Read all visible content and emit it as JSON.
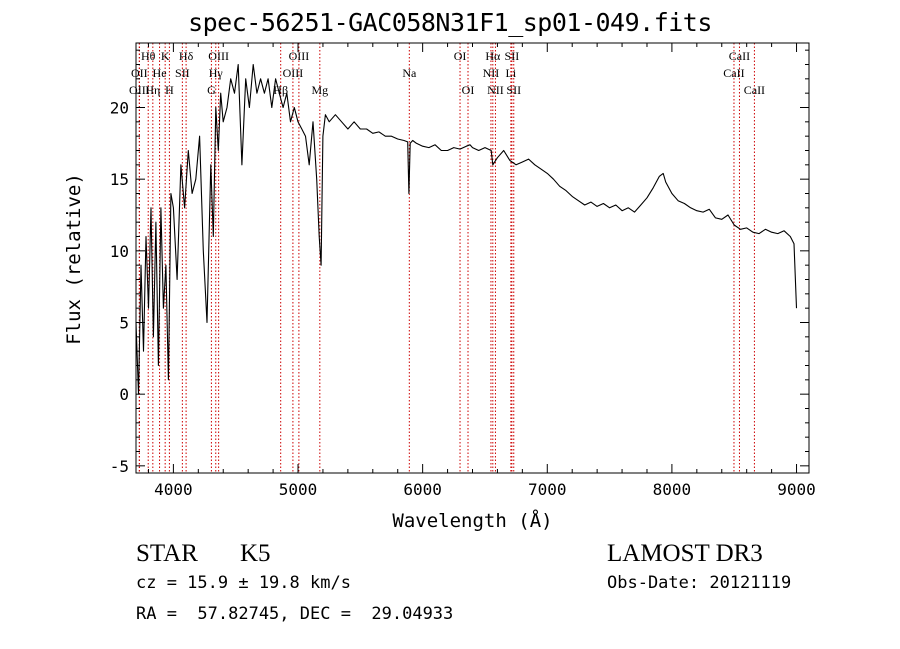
{
  "chart_data": {
    "type": "line",
    "title": "spec-56251-GAC058N31F1_sp01-049.fits",
    "xlabel": "Wavelength (Å)",
    "ylabel": "Flux (relative)",
    "xlim": [
      3700,
      9100
    ],
    "ylim": [
      -5.5,
      24.5
    ],
    "x_ticks": [
      4000,
      5000,
      6000,
      7000,
      8000,
      9000
    ],
    "y_ticks": [
      -5,
      0,
      5,
      10,
      15,
      20
    ],
    "series": [
      {
        "x": [
          3700,
          3720,
          3740,
          3760,
          3780,
          3800,
          3820,
          3840,
          3860,
          3880,
          3900,
          3920,
          3940,
          3960,
          3980,
          4000,
          4030,
          4060,
          4090,
          4120,
          4150,
          4180,
          4210,
          4240,
          4270,
          4300,
          4320,
          4340,
          4360,
          4380,
          4400,
          4430,
          4460,
          4490,
          4520,
          4550,
          4580,
          4610,
          4640,
          4670,
          4700,
          4730,
          4760,
          4790,
          4820,
          4850,
          4880,
          4910,
          4940,
          4970,
          5000,
          5030,
          5060,
          5090,
          5120,
          5150,
          5170,
          5185,
          5200,
          5220,
          5250,
          5300,
          5350,
          5400,
          5450,
          5500,
          5550,
          5600,
          5650,
          5700,
          5750,
          5800,
          5850,
          5880,
          5890,
          5900,
          5920,
          5950,
          6000,
          6050,
          6100,
          6150,
          6200,
          6250,
          6300,
          6350,
          6380,
          6400,
          6450,
          6500,
          6550,
          6563,
          6600,
          6650,
          6700,
          6750,
          6800,
          6850,
          6900,
          6950,
          7000,
          7050,
          7100,
          7150,
          7200,
          7250,
          7300,
          7350,
          7400,
          7450,
          7500,
          7550,
          7600,
          7650,
          7700,
          7750,
          7800,
          7850,
          7900,
          7930,
          7950,
          8000,
          8050,
          8100,
          8150,
          8200,
          8250,
          8300,
          8350,
          8400,
          8450,
          8500,
          8550,
          8600,
          8650,
          8700,
          8750,
          8800,
          8850,
          8900,
          8950,
          8980,
          9000
        ],
        "y": [
          5,
          0,
          9,
          3,
          11,
          6,
          13,
          4,
          12,
          2,
          13,
          6,
          9,
          1,
          14,
          13,
          8,
          16,
          13,
          17,
          14,
          15,
          18,
          10,
          5,
          16,
          11,
          20,
          17,
          21,
          19,
          20,
          22,
          21,
          23,
          16,
          22,
          20,
          23,
          21,
          22,
          21,
          22,
          20,
          22,
          21,
          20,
          21,
          19,
          20,
          19,
          18.5,
          18,
          16,
          19,
          15,
          11,
          9,
          18,
          19.5,
          19,
          19.5,
          19,
          18.5,
          19,
          18.5,
          18.5,
          18.2,
          18.3,
          18,
          18,
          17.8,
          17.7,
          17.6,
          14,
          17.5,
          17.7,
          17.5,
          17.3,
          17.2,
          17.4,
          17,
          17,
          17.2,
          17.1,
          17.3,
          17.4,
          17.2,
          17,
          17.2,
          17,
          16,
          16.5,
          17,
          16.3,
          16,
          16.2,
          16.4,
          16,
          15.7,
          15.4,
          15,
          14.5,
          14.2,
          13.8,
          13.5,
          13.2,
          13.4,
          13.1,
          13.3,
          13,
          13.2,
          12.8,
          13,
          12.7,
          13.2,
          13.7,
          14.4,
          15.2,
          15.4,
          14.8,
          14,
          13.5,
          13.3,
          13,
          12.8,
          12.7,
          12.9,
          12.3,
          12.2,
          12.5,
          11.8,
          11.5,
          11.6,
          11.3,
          11.2,
          11.5,
          11.3,
          11.2,
          11.4,
          11,
          10.5,
          6
        ]
      }
    ],
    "lines": [
      {
        "label": "Hθ",
        "x": 3798,
        "row": 0
      },
      {
        "label": "OII",
        "x": 3727,
        "row": 1
      },
      {
        "label": "OIII",
        "x": 3727,
        "row": 2
      },
      {
        "label": "Hη",
        "x": 3835,
        "row": 2
      },
      {
        "label": "K",
        "x": 3934,
        "row": 0
      },
      {
        "label": "He",
        "x": 3889,
        "row": 1
      },
      {
        "label": "H",
        "x": 3968,
        "row": 2
      },
      {
        "label": "SII",
        "x": 4072,
        "row": 1
      },
      {
        "label": "Hδ",
        "x": 4102,
        "row": 0
      },
      {
        "label": "OIII",
        "x": 4363,
        "row": 0
      },
      {
        "label": "Hγ",
        "x": 4340,
        "row": 1
      },
      {
        "label": "G",
        "x": 4305,
        "row": 2
      },
      {
        "label": "Hβ",
        "x": 4861,
        "row": 2
      },
      {
        "label": "OIII",
        "x": 5007,
        "row": 0
      },
      {
        "label": "OIII",
        "x": 4959,
        "row": 1
      },
      {
        "label": "Mg",
        "x": 5175,
        "row": 2
      },
      {
        "label": "Na",
        "x": 5893,
        "row": 1
      },
      {
        "label": "OI",
        "x": 6300,
        "row": 0
      },
      {
        "label": "OI",
        "x": 6364,
        "row": 2
      },
      {
        "label": "Hα",
        "x": 6563,
        "row": 0
      },
      {
        "label": "SII",
        "x": 6716,
        "row": 0
      },
      {
        "label": "NII",
        "x": 6548,
        "row": 1
      },
      {
        "label": "Li",
        "x": 6708,
        "row": 1
      },
      {
        "label": "NII",
        "x": 6584,
        "row": 2
      },
      {
        "label": "SII",
        "x": 6731,
        "row": 2
      },
      {
        "label": "CaII",
        "x": 8542,
        "row": 0
      },
      {
        "label": "CaII",
        "x": 8498,
        "row": 1
      },
      {
        "label": "CaII",
        "x": 8662,
        "row": 2
      }
    ],
    "colors": {
      "spectrum": "#000000",
      "line_markers": "#cc0000"
    }
  },
  "info": {
    "class": "STAR",
    "subclass": "K5",
    "survey": "LAMOST DR3",
    "cz": "cz = 15.9 ± 19.8 km/s",
    "obs_date": "Obs-Date: 20121119",
    "radec": "RA =  57.82745, DEC =  29.04933"
  }
}
